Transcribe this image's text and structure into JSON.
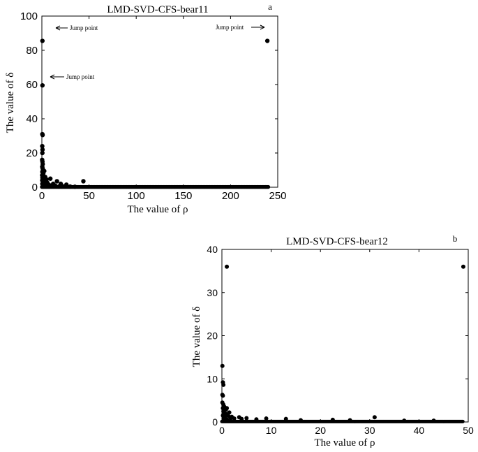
{
  "chart_data": [
    {
      "type": "scatter",
      "panel_letter": "a",
      "title": "LMD-SVD-CFS-bear11",
      "xlabel": "The value of ρ",
      "ylabel": "The value of δ",
      "xlim": [
        0,
        250
      ],
      "ylim": [
        0,
        100
      ],
      "xticks": [
        0,
        50,
        100,
        150,
        200,
        250
      ],
      "yticks": [
        0,
        20,
        40,
        60,
        80,
        100
      ],
      "grid": false,
      "annotations": [
        {
          "text": "Jump point",
          "x": 0.6,
          "y": 85.5,
          "arrow": "left"
        },
        {
          "text": "Jump point",
          "x": 239,
          "y": 85.5,
          "arrow": "right"
        },
        {
          "text": "Jump point",
          "x": 0.6,
          "y": 59.5,
          "arrow": "left"
        }
      ],
      "points": [
        [
          0.6,
          85.5
        ],
        [
          239,
          85.5
        ],
        [
          0.6,
          59.5
        ],
        [
          0.5,
          31
        ],
        [
          0.8,
          30.5
        ],
        [
          0.4,
          24
        ],
        [
          0.7,
          22
        ],
        [
          0.5,
          20
        ],
        [
          0.3,
          16
        ],
        [
          0.6,
          15
        ],
        [
          0.9,
          13.5
        ],
        [
          0.4,
          12
        ],
        [
          0.8,
          11
        ],
        [
          1.2,
          10
        ],
        [
          0.5,
          9
        ],
        [
          2.5,
          9.5
        ],
        [
          1.5,
          8
        ],
        [
          0.3,
          7
        ],
        [
          1.0,
          6.5
        ],
        [
          3.5,
          6
        ],
        [
          0.6,
          5.5
        ],
        [
          2.0,
          5
        ],
        [
          5.0,
          4.5
        ],
        [
          9.0,
          5
        ],
        [
          0.4,
          4
        ],
        [
          1.3,
          3.5
        ],
        [
          3.0,
          3
        ],
        [
          16,
          3.5
        ],
        [
          44,
          3.5
        ],
        [
          6,
          2.5
        ],
        [
          12,
          2
        ],
        [
          20,
          2
        ],
        [
          26,
          1.5
        ],
        [
          8,
          1.2
        ],
        [
          14,
          1
        ],
        [
          2,
          1.5
        ],
        [
          0.5,
          2
        ],
        [
          1,
          1
        ],
        [
          4,
          0.8
        ],
        [
          7,
          0.6
        ],
        [
          10,
          0.5
        ],
        [
          18,
          0.4
        ],
        [
          22,
          0.6
        ],
        [
          30,
          0.4
        ],
        [
          35,
          0.3
        ]
      ],
      "baseline": {
        "x_start": 0,
        "x_end": 240,
        "y": 0.15,
        "step": 1
      }
    },
    {
      "type": "scatter",
      "panel_letter": "b",
      "title": "LMD-SVD-CFS-bear12",
      "xlabel": "The value of ρ",
      "ylabel": "The value of δ",
      "xlim": [
        0,
        50
      ],
      "ylim": [
        0,
        40
      ],
      "xticks": [
        0,
        10,
        20,
        30,
        40,
        50
      ],
      "yticks": [
        0,
        10,
        20,
        30,
        40
      ],
      "grid": false,
      "points": [
        [
          1,
          36
        ],
        [
          49,
          36
        ],
        [
          0.1,
          13
        ],
        [
          0.2,
          9.2
        ],
        [
          0.3,
          8.6
        ],
        [
          0.1,
          6.3
        ],
        [
          0.2,
          6.1
        ],
        [
          0.1,
          4.5
        ],
        [
          0.3,
          4
        ],
        [
          0.5,
          3.5
        ],
        [
          0.2,
          3.2
        ],
        [
          1.0,
          3.2
        ],
        [
          0.8,
          2.8
        ],
        [
          0.3,
          2.5
        ],
        [
          1.5,
          2.2
        ],
        [
          0.5,
          2
        ],
        [
          0.9,
          1.8
        ],
        [
          0.2,
          1.5
        ],
        [
          1.3,
          1.4
        ],
        [
          2.0,
          1.2
        ],
        [
          0.6,
          1.1
        ],
        [
          3.5,
          1.1
        ],
        [
          5.0,
          0.9
        ],
        [
          9.0,
          0.8
        ],
        [
          13,
          0.7
        ],
        [
          31,
          1.1
        ],
        [
          22.5,
          0.5
        ],
        [
          7,
          0.6
        ],
        [
          4,
          0.7
        ],
        [
          2.5,
          0.8
        ],
        [
          1.8,
          0.9
        ],
        [
          0.4,
          0.8
        ],
        [
          0.7,
          0.6
        ],
        [
          1.1,
          0.5
        ],
        [
          16,
          0.4
        ],
        [
          26,
          0.4
        ],
        [
          37,
          0.3
        ],
        [
          43,
          0.3
        ]
      ],
      "baseline": {
        "x_start": 0,
        "x_end": 49,
        "y": 0.1,
        "step": 0.15
      }
    }
  ]
}
